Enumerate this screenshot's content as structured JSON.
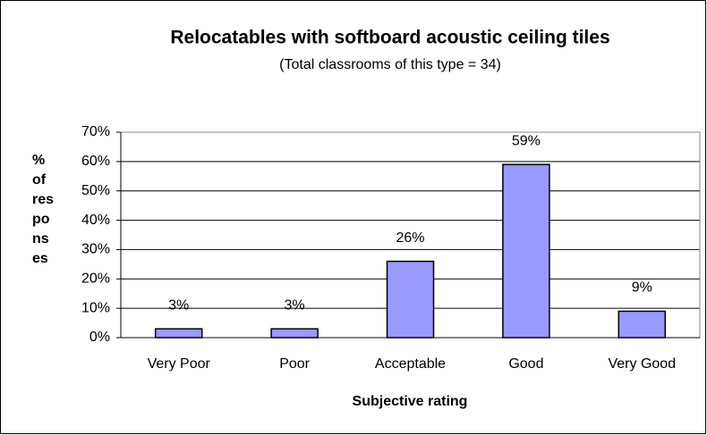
{
  "chart_data": {
    "type": "bar",
    "title": "Relocatables with softboard acoustic ceiling tiles",
    "subtitle": "(Total classrooms of this type = 34)",
    "y_label_lines": [
      "%",
      "of",
      "res",
      "po",
      "ns",
      "es"
    ],
    "x_label": "Subjective rating",
    "categories": [
      "Very Poor",
      "Poor",
      "Acceptable",
      "Good",
      "Very Good"
    ],
    "values": [
      3,
      3,
      26,
      59,
      9
    ],
    "value_labels": [
      "3%",
      "3%",
      "26%",
      "59%",
      "9%"
    ],
    "color": "#9999ff",
    "ylim": [
      0,
      70
    ],
    "yticks": [
      {
        "value": 0,
        "label": "0%"
      },
      {
        "value": 10,
        "label": "10%"
      },
      {
        "value": 20,
        "label": "20%"
      },
      {
        "value": 30,
        "label": "30%"
      },
      {
        "value": 40,
        "label": "40%"
      },
      {
        "value": 50,
        "label": "50%"
      },
      {
        "value": 60,
        "label": "60%"
      },
      {
        "value": 70,
        "label": "70%"
      }
    ],
    "grid": true
  }
}
